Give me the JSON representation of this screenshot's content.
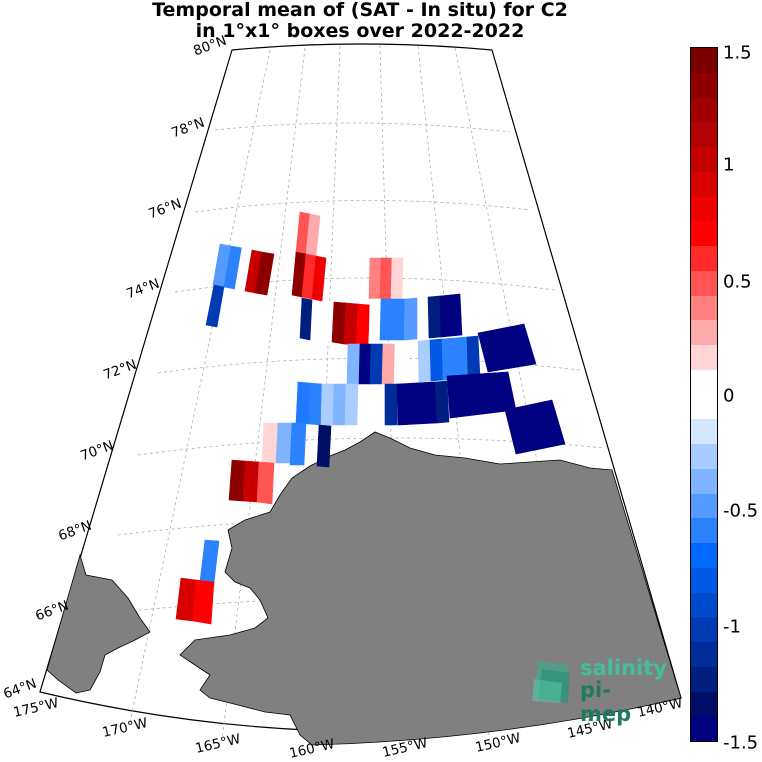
{
  "title": {
    "line1": "Temporal mean of (SAT - In situ) for C2",
    "line2": "in 1°x1° boxes over 2022-2022"
  },
  "lat_labels": [
    "80°N",
    "78°N",
    "76°N",
    "74°N",
    "72°N",
    "70°N",
    "68°N",
    "66°N",
    "64°N"
  ],
  "lon_labels": [
    "175°W",
    "170°W",
    "165°W",
    "160°W",
    "155°W",
    "150°W",
    "145°W",
    "140°W"
  ],
  "colorbar": {
    "ticks": [
      "1.5",
      "1",
      "0.5",
      "0",
      "-0.5",
      "-1",
      "-1.5"
    ],
    "range": [
      -1.5,
      1.5
    ],
    "colors": [
      "#7a0000",
      "#8e0000",
      "#a00000",
      "#b30000",
      "#c60000",
      "#d90000",
      "#ec0000",
      "#ff0000",
      "#ff2a2a",
      "#ff5555",
      "#ff8080",
      "#ffaaaa",
      "#ffd5d5",
      "#ffffff",
      "#ffffff",
      "#d5e6ff",
      "#aacdff",
      "#80b4ff",
      "#559bff",
      "#2a82ff",
      "#0069ff",
      "#0059e6",
      "#004acc",
      "#003bb3",
      "#002c99",
      "#001d80",
      "#000e66",
      "#000080"
    ]
  },
  "logo": {
    "line1": "salinity",
    "line2": "pi-mep"
  },
  "colors": {
    "land": "#808080",
    "ocean": "#ffffff",
    "grid": "#b0b0b0"
  }
}
